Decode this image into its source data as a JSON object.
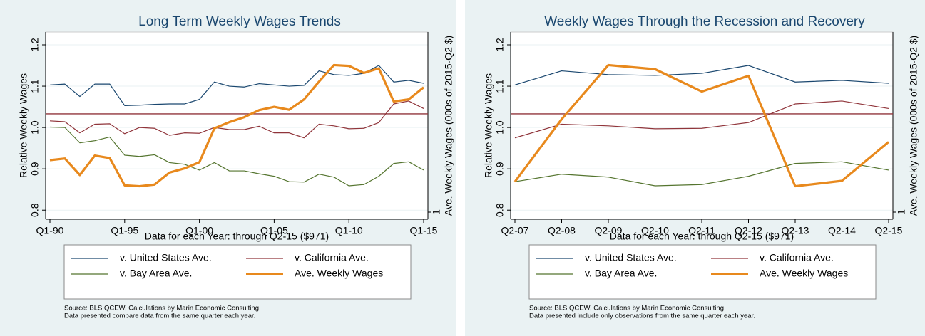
{
  "chart_data": [
    {
      "type": "line",
      "title": "Long Term Weekly Wages Trends",
      "y_label": "Relative Weekly Wages",
      "y2_label": "Ave. Weekly Wages (000s of 2015-Q2 $)",
      "x_label": "Data for each Year: through Q2-15 ($971)",
      "categories": [
        "Q1-90",
        null,
        null,
        null,
        null,
        "Q1-95",
        null,
        null,
        null,
        null,
        "Q1-00",
        null,
        null,
        null,
        null,
        "Q1-05",
        null,
        null,
        null,
        null,
        "Q1-10",
        null,
        null,
        null,
        null,
        "Q1-15"
      ],
      "series": [
        {
          "name": "v. United States Ave.",
          "color": "#1a476f",
          "values": [
            1.103,
            1.105,
            1.075,
            1.105,
            1.105,
            1.053,
            1.054,
            1.056,
            1.057,
            1.057,
            1.068,
            1.11,
            1.1,
            1.098,
            1.106,
            1.103,
            1.1,
            1.102,
            1.137,
            1.128,
            1.126,
            1.131,
            1.15,
            1.11,
            1.114,
            1.107
          ]
        },
        {
          "name": "v. California Ave.",
          "color": "#90353b",
          "values": [
            1.016,
            1.014,
            0.987,
            1.008,
            1.009,
            0.985,
            1.0,
            0.998,
            0.981,
            0.987,
            0.986,
            1.0,
            0.995,
            0.995,
            1.003,
            0.987,
            0.987,
            0.975,
            1.008,
            1.004,
            0.997,
            0.998,
            1.012,
            1.057,
            1.064,
            1.046
          ]
        },
        {
          "name": "v. Bay Area Ave.",
          "color": "#55752f",
          "values": [
            1.001,
            1.0,
            0.963,
            0.968,
            0.977,
            0.933,
            0.93,
            0.934,
            0.915,
            0.911,
            0.897,
            0.915,
            0.895,
            0.895,
            0.888,
            0.882,
            0.869,
            0.868,
            0.887,
            0.88,
            0.859,
            0.862,
            0.882,
            0.913,
            0.917,
            0.897
          ]
        },
        {
          "name": "Ave. Weekly Wages",
          "color": "#e8891d",
          "values": [
            0.921,
            0.925,
            0.885,
            0.932,
            0.926,
            0.86,
            0.858,
            0.862,
            0.891,
            0.901,
            0.916,
            0.998,
            1.013,
            1.025,
            1.042,
            1.05,
            1.043,
            1.068,
            1.111,
            1.151,
            1.149,
            1.132,
            1.143,
            1.063,
            1.068,
            1.097
          ]
        }
      ],
      "reference_line": 1.033,
      "reference_color": "#90353b",
      "ylim": [
        0.778,
        1.231
      ],
      "yticks": [
        0.8,
        0.9,
        {
          "value": 1,
          "label": "1.0"
        },
        1.1,
        1.2
      ],
      "y2lim": [
        0.985,
        1.38
      ],
      "y2ticks": [
        1
      ],
      "grid": true,
      "notes": [
        "Source: BLS QCEW, Calculations by Marin Economic Consulting",
        "Data presented compare data from the same quarter each year."
      ]
    },
    {
      "type": "line",
      "title": "Weekly Wages Through the Recession and Recovery",
      "y_label": "Relative Weekly Wages",
      "y2_label": "Ave. Weekly Wages (000s of 2015-Q2 $)",
      "x_label": "Data for each Year: through Q2-15 ($971)",
      "categories": [
        "Q2-07",
        "Q2-08",
        "Q2-09",
        "Q2-10",
        "Q2-11",
        "Q2-12",
        "Q2-13",
        "Q2-14",
        "Q2-15"
      ],
      "series": [
        {
          "name": "v. United States Ave.",
          "color": "#1a476f",
          "values": [
            1.103,
            1.137,
            1.128,
            1.126,
            1.131,
            1.15,
            1.11,
            1.114,
            1.107
          ]
        },
        {
          "name": "v. California Ave.",
          "color": "#90353b",
          "values": [
            0.975,
            1.008,
            1.004,
            0.997,
            0.998,
            1.012,
            1.057,
            1.064,
            1.046
          ]
        },
        {
          "name": "v. Bay Area Ave.",
          "color": "#55752f",
          "values": [
            0.869,
            0.887,
            0.88,
            0.859,
            0.862,
            0.882,
            0.913,
            0.917,
            0.897
          ]
        },
        {
          "name": "Ave. Weekly Wages",
          "color": "#e8891d",
          "values": [
            0.869,
            1.02,
            1.151,
            1.141,
            1.087,
            1.125,
            0.858,
            0.871,
            0.965
          ]
        }
      ],
      "reference_line": 1.033,
      "reference_color": "#90353b",
      "ylim": [
        0.778,
        1.231
      ],
      "yticks": [
        0.8,
        0.9,
        {
          "value": 1,
          "label": "1.0"
        },
        1.1,
        1.2
      ],
      "y2lim": [
        0.985,
        1.38
      ],
      "y2ticks": [
        1
      ],
      "grid": true,
      "notes": [
        "Source: BLS QCEW, Calculations by Marin Economic Consulting",
        "Data presented include only observations from the same quarter each year."
      ]
    }
  ]
}
